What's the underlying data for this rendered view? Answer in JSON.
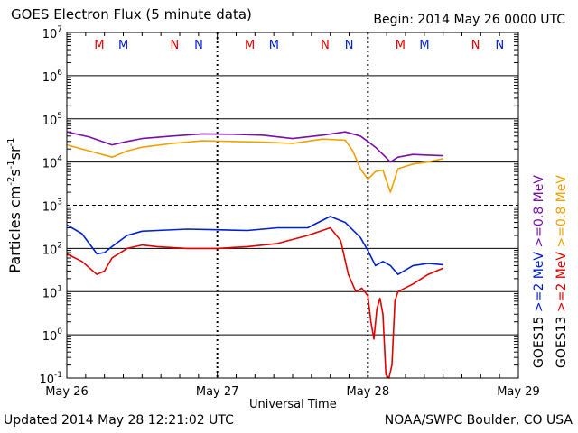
{
  "header": {
    "title": "GOES Electron Flux (5 minute data)",
    "begin": "Begin: 2014 May 26 0000 UTC"
  },
  "footer": {
    "updated": "Updated 2014 May 28 12:21:02 UTC",
    "credit": "NOAA/SWPC Boulder, CO USA"
  },
  "colors": {
    "goes15_08": "#7a0fa8",
    "goes13_08": "#f0a000",
    "goes15_2": "#0020d0",
    "goes13_2": "#e00000",
    "M_marker": "#e00000",
    "N_marker": "#0020d0"
  },
  "chart_data": {
    "type": "line",
    "title": "GOES Electron Flux (5 minute data)",
    "xlabel": "Universal Time",
    "ylabel": "Particles cm-2s-1sr-1",
    "yscale": "log",
    "ylim": [
      0.1,
      10000000
    ],
    "xlim": [
      0,
      3
    ],
    "x_ticks": [
      {
        "x": 0,
        "label": "May 26"
      },
      {
        "x": 1,
        "label": "May 27"
      },
      {
        "x": 2,
        "label": "May 28"
      },
      {
        "x": 3,
        "label": "May 29"
      }
    ],
    "y_ticks": [
      {
        "value": 0.1,
        "mant": "10",
        "exp": "-1"
      },
      {
        "value": 1,
        "mant": "10",
        "exp": "0"
      },
      {
        "value": 10,
        "mant": "10",
        "exp": "1"
      },
      {
        "value": 100,
        "mant": "10",
        "exp": "2"
      },
      {
        "value": 1000,
        "mant": "10",
        "exp": "3"
      },
      {
        "value": 10000,
        "mant": "10",
        "exp": "4"
      },
      {
        "value": 100000,
        "mant": "10",
        "exp": "5"
      },
      {
        "value": 1000000,
        "mant": "10",
        "exp": "6"
      },
      {
        "value": 10000000,
        "mant": "10",
        "exp": "7"
      }
    ],
    "grid": "horizontal decades; dashed at 1000",
    "markers": [
      {
        "x": 0.36,
        "label": "M",
        "color": "#e00000"
      },
      {
        "x": 0.52,
        "label": "M",
        "color": "#0020d0"
      },
      {
        "x": 0.86,
        "label": "N",
        "color": "#e00000"
      },
      {
        "x": 1.02,
        "label": "N",
        "color": "#0020d0"
      },
      {
        "x": 1.36,
        "label": "M",
        "color": "#e00000"
      },
      {
        "x": 1.52,
        "label": "M",
        "color": "#0020d0"
      },
      {
        "x": 1.86,
        "label": "N",
        "color": "#e00000"
      },
      {
        "x": 2.02,
        "label": "N",
        "color": "#0020d0"
      },
      {
        "x": 2.36,
        "label": "M",
        "color": "#e00000"
      },
      {
        "x": 2.52,
        "label": "M",
        "color": "#0020d0"
      },
      {
        "x": 2.86,
        "label": "N",
        "color": "#e00000"
      },
      {
        "x": 3.02,
        "label": "N",
        "color": "#0020d0"
      }
    ],
    "legend": {
      "placement": "right, rotated",
      "sat_labels": [
        "GOES15",
        "GOES13"
      ],
      "energy_items": [
        {
          "text": ">=2",
          "color": "#0020d0"
        },
        {
          "text": ">=2",
          "color": "#e00000"
        },
        {
          "text": ">=0.8",
          "color": "#7a0fa8"
        },
        {
          "text": ">=0.8",
          "color": "#f0a000"
        }
      ],
      "unit": "MeV"
    },
    "series": [
      {
        "name": "GOES15 >=0.8 MeV",
        "color": "#7a0fa8",
        "x": [
          0.0,
          0.15,
          0.3,
          0.4,
          0.5,
          0.7,
          0.9,
          1.1,
          1.3,
          1.5,
          1.7,
          1.85,
          1.95,
          2.0,
          2.05,
          2.1,
          2.15,
          2.2,
          2.3,
          2.4,
          2.5
        ],
        "y": [
          50000,
          38000,
          25000,
          30000,
          35000,
          40000,
          45000,
          44000,
          42000,
          35000,
          42000,
          50000,
          40000,
          30000,
          22000,
          15000,
          10000,
          13000,
          15000,
          14500,
          14000
        ]
      },
      {
        "name": "GOES13 >=0.8 MeV",
        "color": "#f0a000",
        "x": [
          0.0,
          0.15,
          0.3,
          0.4,
          0.5,
          0.7,
          0.9,
          1.1,
          1.3,
          1.5,
          1.7,
          1.85,
          1.9,
          1.95,
          2.0,
          2.05,
          2.1,
          2.15,
          2.2,
          2.3,
          2.4,
          2.5
        ],
        "y": [
          25000,
          18000,
          13000,
          18000,
          22000,
          27000,
          31000,
          30000,
          29000,
          27000,
          34000,
          32000,
          18000,
          7000,
          4000,
          6000,
          6500,
          2000,
          7000,
          9000,
          10000,
          12000
        ]
      },
      {
        "name": "GOES15 >=2 MeV",
        "color": "#0020d0",
        "x": [
          0.0,
          0.1,
          0.2,
          0.25,
          0.3,
          0.4,
          0.5,
          0.6,
          0.8,
          1.0,
          1.2,
          1.4,
          1.6,
          1.75,
          1.85,
          1.95,
          2.0,
          2.05,
          2.1,
          2.15,
          2.2,
          2.3,
          2.4,
          2.5
        ],
        "y": [
          350,
          220,
          75,
          80,
          110,
          200,
          250,
          260,
          280,
          270,
          260,
          300,
          300,
          550,
          400,
          180,
          90,
          40,
          50,
          40,
          25,
          40,
          45,
          42
        ]
      },
      {
        "name": "GOES13 >=2 MeV",
        "color": "#e00000",
        "x": [
          0.0,
          0.1,
          0.2,
          0.25,
          0.3,
          0.4,
          0.5,
          0.6,
          0.8,
          1.0,
          1.2,
          1.4,
          1.6,
          1.75,
          1.82,
          1.87,
          1.92,
          1.96,
          2.0,
          2.02,
          2.04,
          2.06,
          2.08,
          2.1,
          2.12,
          2.14,
          2.16,
          2.18,
          2.2,
          2.3,
          2.4,
          2.5
        ],
        "y": [
          75,
          50,
          25,
          30,
          60,
          100,
          120,
          110,
          100,
          100,
          110,
          130,
          200,
          300,
          150,
          25,
          10,
          12,
          8,
          2,
          0.8,
          4,
          7,
          3,
          0.12,
          0.1,
          0.2,
          6,
          10,
          15,
          25,
          35
        ]
      }
    ]
  }
}
